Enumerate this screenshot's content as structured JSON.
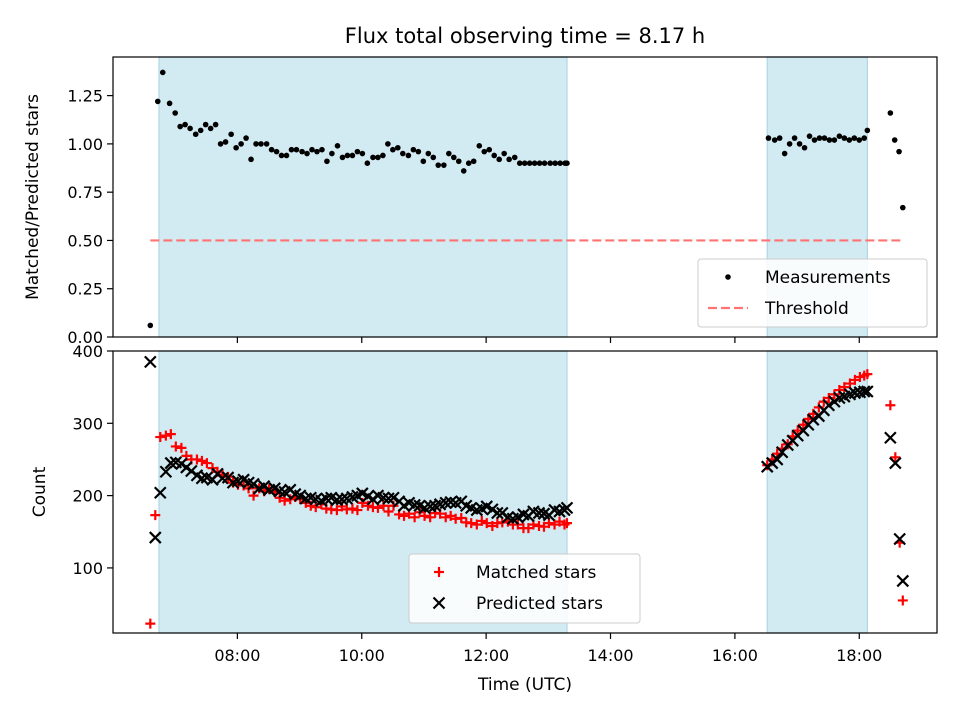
{
  "title": "Flux total observing time = 8.17 h",
  "shade_color": "#add8e6",
  "shaded_spans_hours": [
    [
      6.74,
      13.3
    ],
    [
      16.52,
      18.13
    ]
  ],
  "chart_data": [
    {
      "type": "scatter",
      "ylabel": "Matched/Predicted stars",
      "xlabel": "",
      "xlim": [
        6.0,
        19.25
      ],
      "ylim": [
        0.0,
        1.45
      ],
      "y_ticks": [
        0.0,
        0.25,
        0.5,
        0.75,
        1.0,
        1.25
      ],
      "y_tick_labels": [
        "0.00",
        "0.25",
        "0.50",
        "0.75",
        "1.00",
        "1.25"
      ],
      "threshold": {
        "name": "Threshold",
        "value": 0.5,
        "x_range": [
          6.6,
          18.7
        ],
        "color": "#ff7373"
      },
      "legend": {
        "position": "lower-right",
        "entries": [
          "Measurements",
          "Threshold"
        ]
      },
      "series": [
        {
          "name": "Measurements",
          "color": "#000000",
          "marker": "dot",
          "x": [
            6.6,
            6.72,
            6.8,
            6.91,
            7.0,
            7.08,
            7.16,
            7.24,
            7.33,
            7.41,
            7.49,
            7.57,
            7.65,
            7.73,
            7.81,
            7.9,
            7.98,
            8.06,
            8.14,
            8.22,
            8.3,
            8.38,
            8.47,
            8.55,
            8.63,
            8.71,
            8.79,
            8.87,
            8.95,
            9.04,
            9.12,
            9.2,
            9.28,
            9.36,
            9.44,
            9.52,
            9.61,
            9.69,
            9.77,
            9.85,
            9.93,
            10.01,
            10.09,
            10.18,
            10.26,
            10.34,
            10.42,
            10.5,
            10.58,
            10.66,
            10.75,
            10.83,
            10.91,
            10.99,
            11.07,
            11.15,
            11.23,
            11.32,
            11.4,
            11.48,
            11.56,
            11.64,
            11.72,
            11.8,
            11.89,
            11.97,
            12.05,
            12.13,
            12.21,
            12.29,
            12.37,
            12.46,
            12.54,
            12.62,
            12.7,
            12.78,
            12.86,
            12.94,
            13.03,
            13.11,
            13.19,
            13.27,
            13.3,
            16.54,
            16.64,
            16.72,
            16.8,
            16.88,
            16.96,
            17.04,
            17.12,
            17.2,
            17.28,
            17.36,
            17.44,
            17.52,
            17.6,
            17.68,
            17.76,
            17.84,
            17.92,
            18.0,
            18.08,
            18.13,
            18.5,
            18.57,
            18.64,
            18.7
          ],
          "values": [
            0.06,
            1.22,
            1.37,
            1.21,
            1.16,
            1.09,
            1.1,
            1.08,
            1.05,
            1.07,
            1.1,
            1.08,
            1.1,
            1.0,
            1.01,
            1.05,
            0.98,
            1.0,
            1.03,
            0.92,
            1.0,
            1.0,
            1.0,
            0.97,
            0.96,
            0.94,
            0.94,
            0.97,
            0.97,
            0.96,
            0.95,
            0.97,
            0.96,
            0.97,
            0.91,
            0.95,
            0.99,
            0.93,
            0.94,
            0.94,
            0.96,
            0.95,
            0.9,
            0.93,
            0.93,
            0.94,
            1.0,
            0.97,
            0.98,
            0.95,
            0.94,
            0.97,
            0.96,
            0.91,
            0.95,
            0.93,
            0.89,
            0.89,
            0.95,
            0.93,
            0.91,
            0.86,
            0.9,
            0.91,
            0.99,
            0.96,
            0.97,
            0.94,
            0.92,
            0.95,
            0.92,
            0.93,
            0.9,
            0.9,
            0.9,
            0.9,
            0.9,
            0.9,
            0.9,
            0.9,
            0.9,
            0.9,
            0.9,
            1.03,
            1.02,
            1.03,
            0.95,
            1.0,
            1.03,
            1.0,
            0.98,
            1.04,
            1.02,
            1.03,
            1.03,
            1.02,
            1.02,
            1.04,
            1.03,
            1.02,
            1.03,
            1.02,
            1.03,
            1.07,
            1.16,
            1.02,
            0.96,
            0.67
          ]
        }
      ]
    },
    {
      "type": "scatter",
      "ylabel": "Count",
      "xlabel": "Time (UTC)",
      "xlim": [
        6.0,
        19.25
      ],
      "ylim": [
        10,
        400
      ],
      "y_ticks": [
        100,
        200,
        300,
        400
      ],
      "y_tick_labels": [
        "100",
        "200",
        "300",
        "400"
      ],
      "x_ticks": [
        8,
        10,
        12,
        14,
        16,
        18
      ],
      "x_tick_labels": [
        "08:00",
        "10:00",
        "12:00",
        "14:00",
        "16:00",
        "18:00"
      ],
      "legend": {
        "position": "lower-center",
        "entries": [
          "Matched stars",
          "Predicted stars"
        ]
      },
      "series": [
        {
          "name": "Matched stars",
          "color": "#ff0000",
          "marker": "plus",
          "x": [
            6.6,
            6.68,
            6.76,
            6.85,
            6.93,
            7.01,
            7.1,
            7.18,
            7.26,
            7.35,
            7.43,
            7.51,
            7.6,
            7.68,
            7.76,
            7.85,
            7.93,
            8.01,
            8.1,
            8.18,
            8.26,
            8.35,
            8.43,
            8.51,
            8.6,
            8.68,
            8.76,
            8.85,
            8.93,
            9.01,
            9.1,
            9.18,
            9.26,
            9.35,
            9.43,
            9.51,
            9.6,
            9.68,
            9.76,
            9.85,
            9.93,
            10.01,
            10.1,
            10.18,
            10.26,
            10.35,
            10.43,
            10.51,
            10.6,
            10.68,
            10.76,
            10.85,
            10.93,
            11.01,
            11.1,
            11.18,
            11.26,
            11.35,
            11.43,
            11.51,
            11.6,
            11.68,
            11.76,
            11.85,
            11.93,
            12.01,
            12.1,
            12.18,
            12.26,
            12.35,
            12.43,
            12.51,
            12.6,
            12.68,
            12.76,
            12.85,
            12.93,
            13.01,
            13.1,
            13.18,
            13.26,
            13.3,
            16.52,
            16.6,
            16.68,
            16.76,
            16.85,
            16.93,
            17.01,
            17.1,
            17.18,
            17.26,
            17.35,
            17.43,
            17.51,
            17.6,
            17.68,
            17.76,
            17.85,
            17.93,
            18.01,
            18.08,
            18.13,
            18.5,
            18.58,
            18.65,
            18.7
          ],
          "values": [
            23,
            173,
            281,
            283,
            285,
            268,
            266,
            255,
            250,
            250,
            248,
            245,
            238,
            233,
            229,
            226,
            218,
            215,
            214,
            210,
            200,
            210,
            206,
            209,
            205,
            197,
            193,
            195,
            198,
            195,
            190,
            186,
            184,
            188,
            182,
            181,
            180,
            185,
            181,
            182,
            180,
            190,
            186,
            184,
            183,
            186,
            178,
            186,
            174,
            172,
            175,
            170,
            177,
            172,
            170,
            176,
            175,
            170,
            172,
            168,
            169,
            163,
            162,
            160,
            165,
            162,
            158,
            162,
            163,
            164,
            160,
            160,
            155,
            155,
            160,
            158,
            157,
            162,
            160,
            164,
            160,
            162,
            242,
            250,
            258,
            265,
            271,
            282,
            290,
            298,
            306,
            313,
            322,
            330,
            335,
            340,
            346,
            350,
            355,
            360,
            364,
            366,
            368,
            325,
            253,
            135,
            55
          ]
        },
        {
          "name": "Predicted stars",
          "color": "#000000",
          "marker": "x",
          "x": [
            6.6,
            6.68,
            6.76,
            6.85,
            6.93,
            7.01,
            7.1,
            7.18,
            7.26,
            7.35,
            7.43,
            7.51,
            7.6,
            7.68,
            7.76,
            7.85,
            7.93,
            8.01,
            8.1,
            8.18,
            8.26,
            8.35,
            8.43,
            8.51,
            8.6,
            8.68,
            8.76,
            8.85,
            8.93,
            9.01,
            9.1,
            9.18,
            9.26,
            9.35,
            9.43,
            9.51,
            9.6,
            9.68,
            9.76,
            9.85,
            9.93,
            10.01,
            10.1,
            10.18,
            10.26,
            10.35,
            10.43,
            10.51,
            10.6,
            10.68,
            10.76,
            10.85,
            10.93,
            11.01,
            11.1,
            11.18,
            11.26,
            11.35,
            11.43,
            11.51,
            11.6,
            11.68,
            11.76,
            11.85,
            11.93,
            12.01,
            12.1,
            12.18,
            12.26,
            12.35,
            12.43,
            12.51,
            12.6,
            12.68,
            12.76,
            12.85,
            12.93,
            13.01,
            13.1,
            13.18,
            13.26,
            13.3,
            16.52,
            16.6,
            16.68,
            16.76,
            16.85,
            16.93,
            17.01,
            17.1,
            17.18,
            17.26,
            17.35,
            17.43,
            17.51,
            17.6,
            17.68,
            17.76,
            17.85,
            17.93,
            18.01,
            18.08,
            18.13,
            18.5,
            18.58,
            18.65,
            18.7
          ],
          "values": [
            385,
            142,
            204,
            233,
            245,
            246,
            244,
            239,
            234,
            228,
            224,
            225,
            222,
            230,
            224,
            225,
            218,
            220,
            222,
            218,
            216,
            210,
            213,
            208,
            210,
            206,
            205,
            208,
            202,
            200,
            196,
            197,
            195,
            193,
            196,
            197,
            194,
            195,
            196,
            198,
            200,
            203,
            199,
            195,
            200,
            197,
            196,
            197,
            192,
            186,
            190,
            187,
            186,
            183,
            185,
            186,
            188,
            190,
            191,
            190,
            192,
            186,
            183,
            180,
            182,
            185,
            181,
            176,
            176,
            170,
            168,
            170,
            174,
            172,
            178,
            176,
            175,
            173,
            180,
            178,
            180,
            183,
            240,
            245,
            250,
            260,
            270,
            276,
            283,
            290,
            298,
            305,
            310,
            318,
            325,
            330,
            335,
            337,
            340,
            342,
            343,
            344,
            344,
            280,
            245,
            140,
            82
          ]
        }
      ]
    }
  ]
}
